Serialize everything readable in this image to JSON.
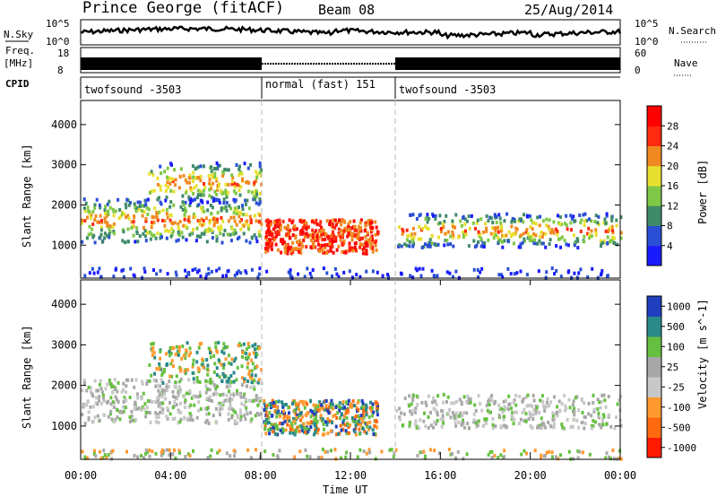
{
  "header": {
    "station": "Prince George (fitACF)",
    "beam": "Beam 08",
    "date": "25/Aug/2014"
  },
  "strips": {
    "nsky_label": "N.Sky",
    "nsky_ticks": [
      "10^5",
      "10^0"
    ],
    "nsearch_label": "N.Search",
    "nsearch_ticks": [
      "10^5",
      "10^0"
    ],
    "freq_label": "Freq.",
    "freq_unit": "[MHz]",
    "freq_ticks": [
      "18",
      "8"
    ],
    "nave_label": "Nave",
    "nave_ticks": [
      "60",
      "0"
    ],
    "cpid_label": "CPID",
    "cpid_segments": [
      {
        "label": "twofsound -3503",
        "start_hour": 0,
        "end_hour": 8
      },
      {
        "label": "normal (fast) 151",
        "start_hour": 8,
        "end_hour": 14
      },
      {
        "label": "twofsound -3503",
        "start_hour": 14,
        "end_hour": 24
      }
    ]
  },
  "chart_data": [
    {
      "type": "heatmap",
      "panel": "power",
      "ylabel": "Slant Range [km]",
      "ylim": [
        180,
        4600
      ],
      "yticks": [
        1000,
        2000,
        3000,
        4000
      ],
      "colorbar_label": "Power [dB]",
      "colorbar_ticks": [
        "4",
        "8",
        "12",
        "16",
        "20",
        "24",
        "28"
      ],
      "colorbar_range": [
        0,
        32
      ],
      "colorbar_colors": [
        "#1a1aff",
        "#2a4fd6",
        "#3f8a6a",
        "#7fc846",
        "#e8e030",
        "#f08a20",
        "#ff2a10",
        "#ff0000"
      ],
      "features": [
        {
          "desc_hours": [
            0,
            8
          ],
          "range_km": [
            1000,
            2300
          ],
          "level": "medium"
        },
        {
          "desc_hours": [
            8.2,
            13
          ],
          "range_km": [
            850,
            1800
          ],
          "level": "high"
        },
        {
          "desc_hours": [
            14,
            24
          ],
          "range_km": [
            1000,
            1900
          ],
          "level": "medium"
        }
      ]
    },
    {
      "type": "heatmap",
      "panel": "velocity",
      "ylabel": "Slant Range [km]",
      "ylim": [
        180,
        4600
      ],
      "yticks": [
        1000,
        2000,
        3000,
        4000
      ],
      "xlabel": "Time UT",
      "xticks": [
        "00:00",
        "04:00",
        "08:00",
        "12:00",
        "16:00",
        "20:00",
        "00:00"
      ],
      "xlim_hours": [
        0,
        24
      ],
      "colorbar_label": "Velocity [m s^-1]",
      "colorbar_ticks": [
        "1000",
        "500",
        "100",
        "25",
        "-25",
        "-100",
        "-500",
        "-1000"
      ],
      "colorbar_colors": [
        "#1f3fbf",
        "#2a8a8a",
        "#66c040",
        "#a8a8a8",
        "#c8c8c8",
        "#ff9a30",
        "#ff6a10",
        "#ff1a00"
      ]
    }
  ]
}
